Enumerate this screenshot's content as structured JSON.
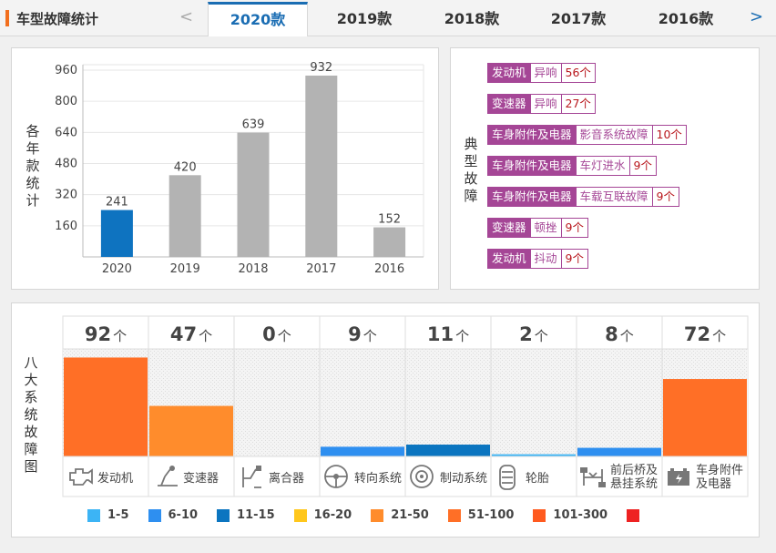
{
  "header": {
    "title": "车型故障统计",
    "prev_arrow": "<",
    "next_arrow": ">",
    "tabs": [
      "2020款",
      "2019款",
      "2018款",
      "2017款",
      "2016款"
    ],
    "active_tab": 0
  },
  "yearly_chart": {
    "side_label": "各年款统计",
    "active_color": "#0e73c0",
    "inactive_color": "#b3b3b3"
  },
  "chart_data": {
    "type": "bar",
    "categories": [
      "2020",
      "2019",
      "2018",
      "2017",
      "2016"
    ],
    "values": [
      241,
      420,
      639,
      932,
      152
    ],
    "yticks": [
      160,
      320,
      480,
      640,
      800,
      960
    ],
    "ylim": [
      0,
      1000
    ],
    "title": "",
    "xlabel": "",
    "ylabel": "各年款统计"
  },
  "typical_faults": {
    "side_label": "典型故障",
    "items": [
      {
        "category": "发动机",
        "type": "异响",
        "count": "56个"
      },
      {
        "category": "变速器",
        "type": "异响",
        "count": "27个"
      },
      {
        "category": "车身附件及电器",
        "type": "影音系统故障",
        "count": "10个"
      },
      {
        "category": "车身附件及电器",
        "type": "车灯进水",
        "count": "9个"
      },
      {
        "category": "车身附件及电器",
        "type": "车载互联故障",
        "count": "9个"
      },
      {
        "category": "变速器",
        "type": "顿挫",
        "count": "9个"
      },
      {
        "category": "发动机",
        "type": "抖动",
        "count": "9个"
      }
    ]
  },
  "systems": {
    "side_label": "八大系统故障图",
    "unit": "个",
    "max_value": 100,
    "items": [
      {
        "name": "发动机",
        "count": 92,
        "color": "#ff6f26",
        "icon": "engine-icon"
      },
      {
        "name": "变速器",
        "count": 47,
        "color": "#ff8c2c",
        "icon": "gear-shifter-icon"
      },
      {
        "name": "离合器",
        "count": 0,
        "color": "#ffffff",
        "icon": "clutch-pedal-icon"
      },
      {
        "name": "转向系统",
        "count": 9,
        "color": "#2e8ff0",
        "icon": "steering-wheel-icon"
      },
      {
        "name": "制动系统",
        "count": 11,
        "color": "#0b75c0",
        "icon": "brake-disc-icon"
      },
      {
        "name": "轮胎",
        "count": 2,
        "color": "#3cb4f5",
        "icon": "tire-icon"
      },
      {
        "name": "前后桥及悬挂系统",
        "count": 8,
        "color": "#2e8ff0",
        "icon": "suspension-icon"
      },
      {
        "name": "车身附件及电器",
        "count": 72,
        "color": "#ff6f26",
        "icon": "battery-icon"
      }
    ],
    "name_lines": [
      [
        "发动机"
      ],
      [
        "变速器"
      ],
      [
        "离合器"
      ],
      [
        "转向系统"
      ],
      [
        "制动系统"
      ],
      [
        "轮胎"
      ],
      [
        "前后桥及",
        "悬挂系统"
      ],
      [
        "车身附件",
        "及电器"
      ]
    ]
  },
  "legend": [
    {
      "label": "1-5",
      "color": "#3cb4f5"
    },
    {
      "label": "6-10",
      "color": "#2e8ff0"
    },
    {
      "label": "11-15",
      "color": "#0b75c0"
    },
    {
      "label": "16-20",
      "color": "#ffc71c"
    },
    {
      "label": "21-50",
      "color": "#ff8c2c"
    },
    {
      "label": "51-100",
      "color": "#ff6f26"
    },
    {
      "label": "101-300",
      "color": "#ff5a1f"
    },
    {
      "label": "",
      "color": "#ee2222"
    }
  ]
}
